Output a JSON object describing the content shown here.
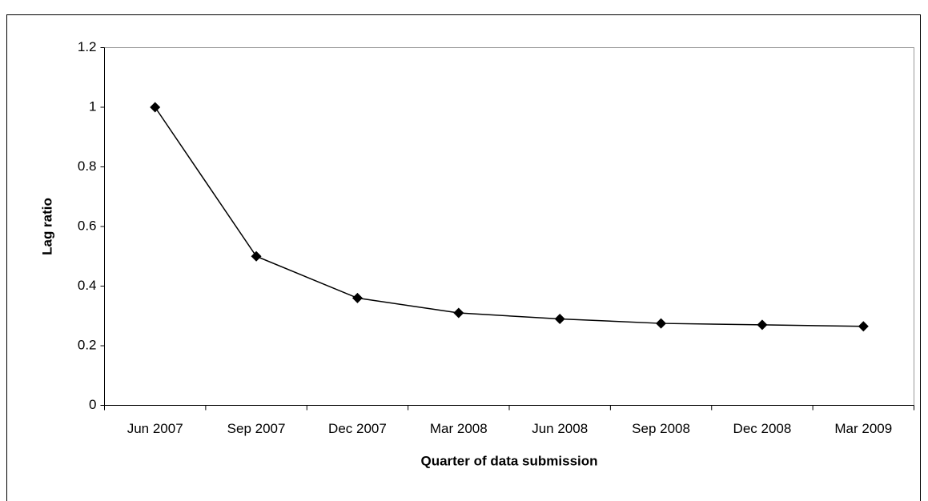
{
  "chart_data": {
    "type": "line",
    "x_label": "Quarter of data submission",
    "y_label": "Lag ratio",
    "categories": [
      "Jun 2007",
      "Sep 2007",
      "Dec 2007",
      "Mar 2008",
      "Jun 2008",
      "Sep 2008",
      "Dec 2008",
      "Mar 2009"
    ],
    "series": [
      {
        "color": "#000000",
        "values": [
          1.0,
          0.5,
          0.36,
          0.31,
          0.29,
          0.275,
          0.27,
          0.265
        ]
      }
    ],
    "ylim": [
      0,
      1.2
    ],
    "yticks": [
      0,
      0.2,
      0.4,
      0.6,
      0.8,
      1,
      1.2
    ],
    "grid": false
  }
}
